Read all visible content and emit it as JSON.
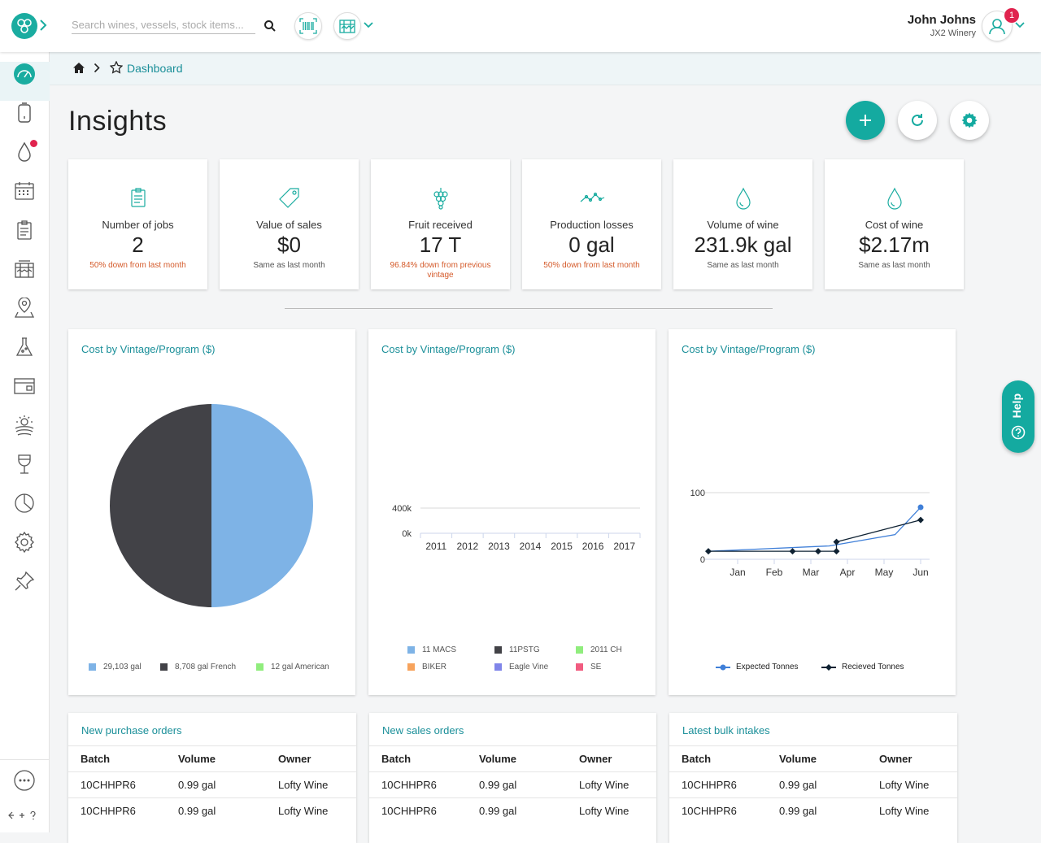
{
  "header": {
    "search_placeholder": "Search wines, vessels, stock items...",
    "user_name": "John Johns",
    "user_org": "JX2 Winery",
    "notification_count": "1"
  },
  "breadcrumb": {
    "current": "Dashboard"
  },
  "page": {
    "title": "Insights"
  },
  "kpis": [
    {
      "label": "Number of jobs",
      "value": "2",
      "sub": "50% down from last month",
      "sub_color": "red"
    },
    {
      "label": "Value of sales",
      "value": "$0",
      "sub": "Same as last month",
      "sub_color": "grey"
    },
    {
      "label": "Fruit received",
      "value": "17 T",
      "sub": "96.84% down from previous vintage",
      "sub_color": "red"
    },
    {
      "label": "Production losses",
      "value": "0 gal",
      "sub": "50% down from last month",
      "sub_color": "red"
    },
    {
      "label": "Volume of wine",
      "value": "231.9k gal",
      "sub": "Same as last month",
      "sub_color": "grey"
    },
    {
      "label": "Cost of wine",
      "value": "$2.17m",
      "sub": "Same as last month",
      "sub_color": "grey"
    }
  ],
  "help": {
    "label": "Help"
  },
  "charts": [
    {
      "title": "Cost by Vintage/Program ($)"
    },
    {
      "title": "Cost by Vintage/Program ($)"
    },
    {
      "title": "Cost by Vintage/Program ($)"
    }
  ],
  "chart_data": [
    {
      "type": "pie",
      "title": "Cost by Vintage/Program ($)",
      "slices": [
        {
          "label": "29,103 gal",
          "value": 50,
          "color": "#7eb3e6"
        },
        {
          "label": "8,708 gal French",
          "value": 50,
          "color": "#424247"
        },
        {
          "label": "12 gal American",
          "value": 0,
          "color": "#90ed7d"
        }
      ]
    },
    {
      "type": "bar",
      "title": "Cost by Vintage/Program ($)",
      "categories": [
        "2011",
        "2012",
        "2013",
        "2014",
        "2015",
        "2016",
        "2017"
      ],
      "ytick_labels": [
        "0k",
        "400k"
      ],
      "ylim": [
        0,
        400000
      ],
      "series": [
        {
          "name": "11 MACS",
          "color": "#7eb3e6",
          "values": [
            0,
            0,
            0,
            0,
            0,
            0,
            0
          ]
        },
        {
          "name": "11PSTG",
          "color": "#424247",
          "values": [
            0,
            0,
            0,
            0,
            0,
            0,
            0
          ]
        },
        {
          "name": "2011 CH",
          "color": "#90ed7d",
          "values": [
            0,
            0,
            0,
            0,
            0,
            0,
            0
          ]
        },
        {
          "name": "BIKER",
          "color": "#f7a35c",
          "values": [
            0,
            0,
            0,
            0,
            0,
            0,
            0
          ]
        },
        {
          "name": "Eagle Vine",
          "color": "#8085e9",
          "values": [
            0,
            0,
            0,
            0,
            0,
            0,
            0
          ]
        },
        {
          "name": "SE",
          "color": "#f15c80",
          "values": [
            0,
            0,
            0,
            0,
            0,
            0,
            0
          ]
        }
      ]
    },
    {
      "type": "line",
      "title": "Cost by Vintage/Program ($)",
      "x_labels": [
        "Jan",
        "Feb",
        "Mar",
        "Apr",
        "May",
        "Jun"
      ],
      "ytick_labels": [
        "0",
        "100"
      ],
      "ylim": [
        0,
        100
      ],
      "xlim": [
        0,
        5.5
      ],
      "series": [
        {
          "name": "Expected Tonnes",
          "color": "#3f7fd8",
          "marker": "circle",
          "points": [
            [
              -0.8,
              12
            ],
            [
              2.5,
              20
            ],
            [
              4.3,
              37
            ],
            [
              5.0,
              78
            ]
          ]
        },
        {
          "name": "Recieved Tonnes",
          "color": "#0f2233",
          "marker": "diamond",
          "points": [
            [
              -0.8,
              12
            ],
            [
              1.5,
              12
            ],
            [
              2.2,
              12
            ],
            [
              2.7,
              12
            ],
            [
              2.7,
              26
            ],
            [
              5.0,
              59
            ]
          ]
        }
      ]
    }
  ],
  "tables": [
    {
      "title": "New purchase orders",
      "headers": [
        "Batch",
        "Volume",
        "Owner"
      ],
      "rows": [
        [
          "10CHHPR6",
          "0.99 gal",
          "Lofty Wine"
        ],
        [
          "10CHHPR6",
          "0.99 gal",
          "Lofty Wine"
        ]
      ]
    },
    {
      "title": "New sales orders",
      "headers": [
        "Batch",
        "Volume",
        "Owner"
      ],
      "rows": [
        [
          "10CHHPR6",
          "0.99 gal",
          "Lofty Wine"
        ],
        [
          "10CHHPR6",
          "0.99 gal",
          "Lofty Wine"
        ]
      ]
    },
    {
      "title": "Latest bulk intakes",
      "headers": [
        "Batch",
        "Volume",
        "Owner"
      ],
      "rows": [
        [
          "10CHHPR6",
          "0.99 gal",
          "Lofty Wine"
        ],
        [
          "10CHHPR6",
          "0.99 gal",
          "Lofty Wine"
        ]
      ]
    }
  ],
  "colors": {
    "accent": "#14aaa0",
    "link": "#1a8f99",
    "alert": "#e0234e",
    "down": "#d45a2a"
  }
}
